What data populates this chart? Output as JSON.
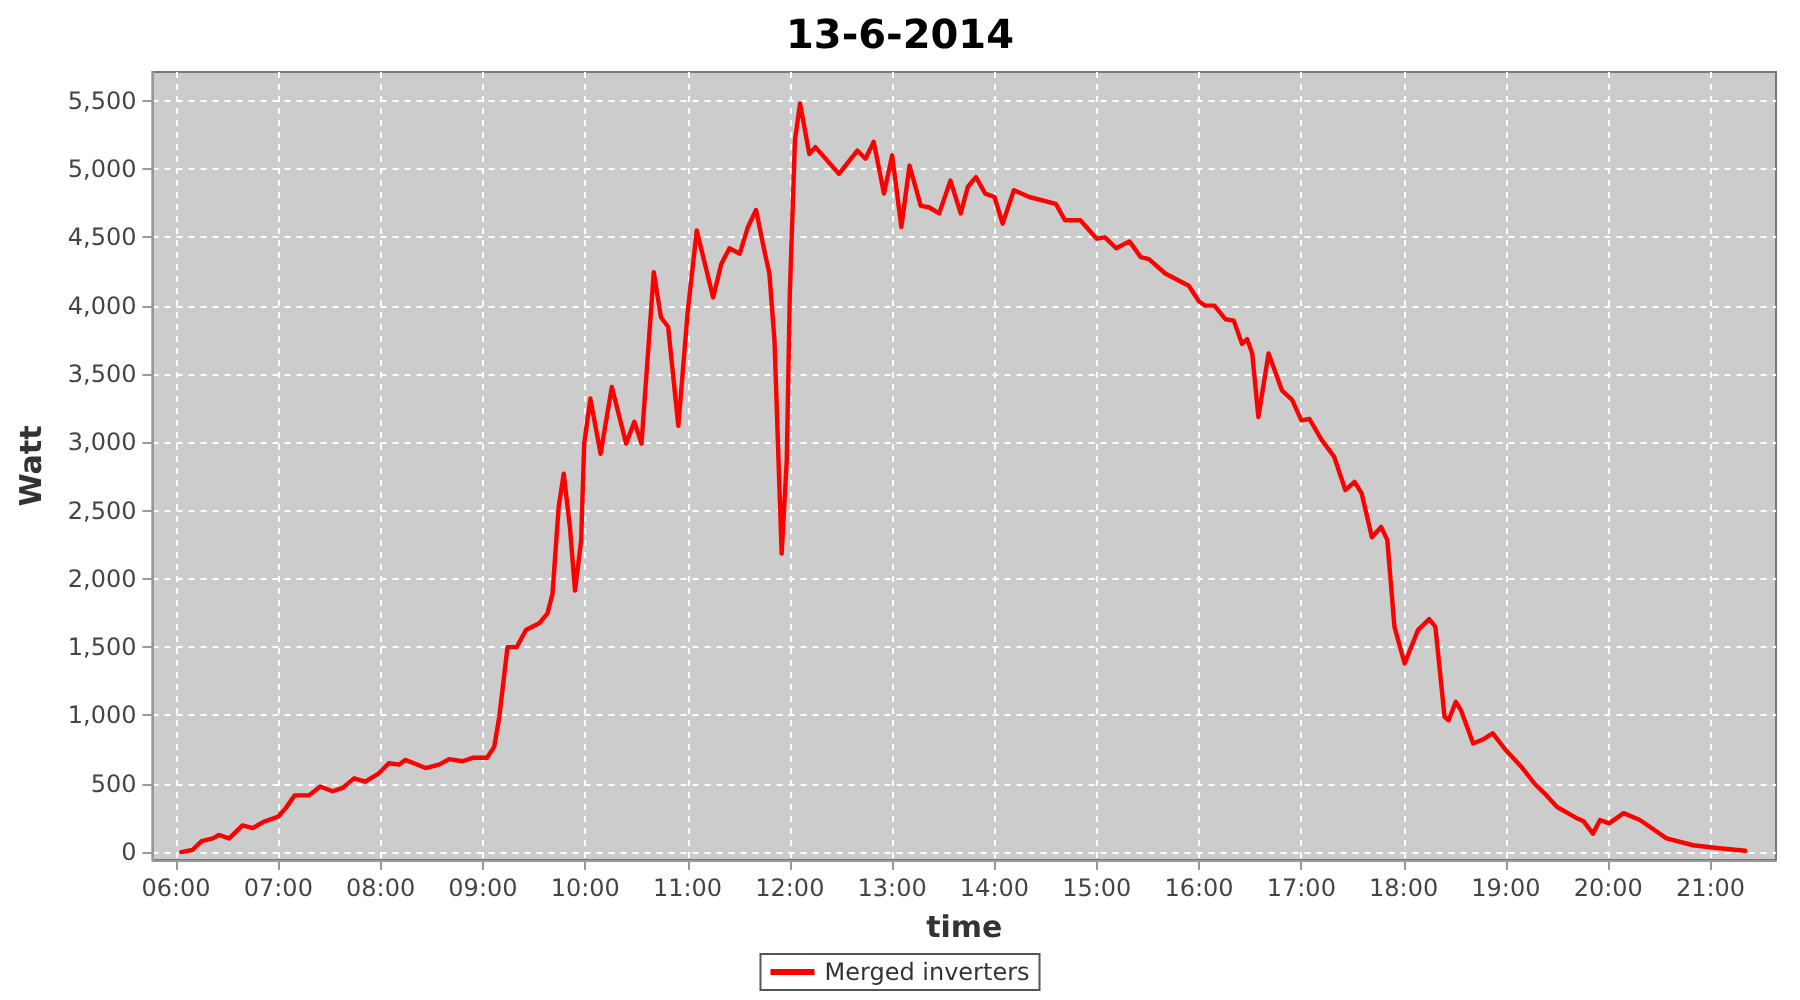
{
  "chart_data": {
    "type": "line",
    "title": "13-6-2014",
    "xlabel": "time",
    "ylabel": "Watt",
    "xlim": [
      5.77,
      21.64
    ],
    "ylim": [
      -58,
      5710
    ],
    "xticks": [
      {
        "value": 6,
        "label": "06:00"
      },
      {
        "value": 7,
        "label": "07:00"
      },
      {
        "value": 8,
        "label": "08:00"
      },
      {
        "value": 9,
        "label": "09:00"
      },
      {
        "value": 10,
        "label": "10:00"
      },
      {
        "value": 11,
        "label": "11:00"
      },
      {
        "value": 12,
        "label": "12:00"
      },
      {
        "value": 13,
        "label": "13:00"
      },
      {
        "value": 14,
        "label": "14:00"
      },
      {
        "value": 15,
        "label": "15:00"
      },
      {
        "value": 16,
        "label": "16:00"
      },
      {
        "value": 17,
        "label": "17:00"
      },
      {
        "value": 18,
        "label": "18:00"
      },
      {
        "value": 19,
        "label": "19:00"
      },
      {
        "value": 20,
        "label": "20:00"
      },
      {
        "value": 21,
        "label": "21:00"
      }
    ],
    "yticks": [
      0,
      500,
      {
        "value": 1000,
        "label": "1,000"
      },
      {
        "value": 1500,
        "label": "1,500"
      },
      {
        "value": 2000,
        "label": "2,000"
      },
      {
        "value": 2500,
        "label": "2,500"
      },
      {
        "value": 3000,
        "label": "3,000"
      },
      {
        "value": 3500,
        "label": "3,500"
      },
      {
        "value": 4000,
        "label": "4,000"
      },
      {
        "value": 4500,
        "label": "4,500"
      },
      {
        "value": 5000,
        "label": "5,000"
      },
      {
        "value": 5500,
        "label": "5,500"
      }
    ],
    "grid": true,
    "legend": "bottom",
    "marker": "none",
    "line_style": "solid",
    "series": [
      {
        "name": "Merged inverters",
        "color": "#ff0000",
        "x": [
          6.05,
          6.16,
          6.25,
          6.36,
          6.42,
          6.52,
          6.65,
          6.75,
          6.85,
          7.0,
          7.07,
          7.16,
          7.3,
          7.41,
          7.53,
          7.63,
          7.74,
          7.85,
          7.98,
          8.08,
          8.18,
          8.24,
          8.44,
          8.57,
          8.67,
          8.8,
          8.9,
          9.04,
          9.11,
          9.16,
          9.24,
          9.33,
          9.42,
          9.55,
          9.63,
          9.68,
          9.74,
          9.79,
          9.85,
          9.9,
          9.96,
          9.99,
          10.05,
          10.15,
          10.26,
          10.4,
          10.48,
          10.55,
          10.67,
          10.74,
          10.81,
          10.91,
          11.0,
          11.09,
          11.25,
          11.33,
          11.41,
          11.51,
          11.59,
          11.67,
          11.75,
          11.8,
          11.85,
          11.92,
          11.97,
          12.0,
          12.05,
          12.1,
          12.19,
          12.25,
          12.48,
          12.66,
          12.74,
          12.82,
          12.92,
          13.0,
          13.09,
          13.17,
          13.28,
          13.36,
          13.46,
          13.57,
          13.67,
          13.74,
          13.82,
          13.91,
          14.0,
          14.08,
          14.19,
          14.34,
          14.6,
          14.69,
          14.84,
          15.0,
          15.08,
          15.19,
          15.32,
          15.43,
          15.51,
          15.67,
          15.9,
          16.0,
          16.06,
          16.15,
          16.26,
          16.34,
          16.42,
          16.47,
          16.52,
          16.58,
          16.68,
          16.81,
          16.91,
          17.0,
          17.08,
          17.2,
          17.32,
          17.43,
          17.52,
          17.59,
          17.69,
          17.78,
          17.84,
          17.91,
          18.01,
          18.14,
          18.25,
          18.31,
          18.4,
          18.44,
          18.51,
          18.56,
          18.68,
          18.79,
          18.87,
          19.0,
          19.15,
          19.28,
          19.39,
          19.5,
          19.7,
          19.76,
          19.85,
          19.92,
          20.01,
          20.15,
          20.31,
          20.57,
          20.83,
          21.06,
          21.34
        ],
        "values": [
          0,
          15,
          80,
          100,
          125,
          100,
          195,
          175,
          220,
          260,
          320,
          415,
          415,
          480,
          445,
          470,
          540,
          515,
          575,
          650,
          640,
          675,
          615,
          640,
          680,
          665,
          690,
          690,
          770,
          990,
          1500,
          1500,
          1625,
          1675,
          1745,
          1890,
          2525,
          2770,
          2380,
          1915,
          2280,
          2990,
          3320,
          2915,
          3405,
          2990,
          3150,
          2990,
          4245,
          3915,
          3845,
          3120,
          3940,
          4550,
          4060,
          4305,
          4420,
          4380,
          4575,
          4700,
          4405,
          4235,
          3745,
          2185,
          2870,
          4090,
          5210,
          5480,
          5110,
          5160,
          4965,
          5135,
          5075,
          5200,
          4820,
          5100,
          4575,
          5025,
          4730,
          4720,
          4675,
          4915,
          4675,
          4870,
          4940,
          4820,
          4795,
          4600,
          4845,
          4795,
          4745,
          4625,
          4625,
          4490,
          4500,
          4420,
          4470,
          4355,
          4340,
          4235,
          4145,
          4030,
          4000,
          4000,
          3900,
          3890,
          3720,
          3755,
          3650,
          3185,
          3650,
          3380,
          3310,
          3160,
          3170,
          3015,
          2895,
          2650,
          2710,
          2625,
          2305,
          2380,
          2285,
          1650,
          1380,
          1625,
          1705,
          1650,
          990,
          965,
          1100,
          1040,
          795,
          830,
          870,
          745,
          625,
          500,
          420,
          330,
          245,
          225,
          135,
          235,
          210,
          285,
          235,
          100,
          50,
          30,
          10
        ]
      }
    ]
  }
}
